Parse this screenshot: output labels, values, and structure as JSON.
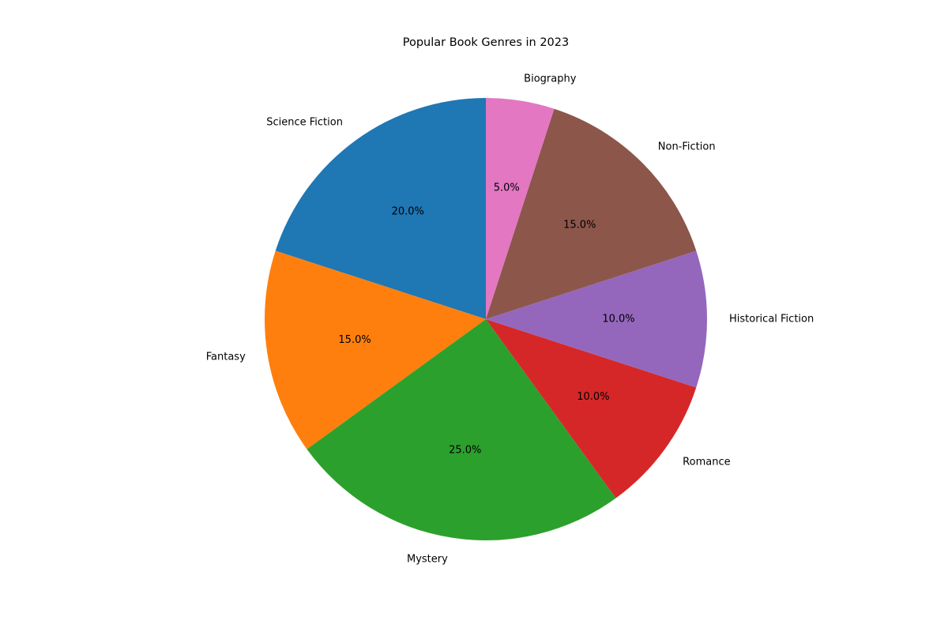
{
  "chart_data": {
    "type": "pie",
    "title": "Popular Book Genres in 2023",
    "categories": [
      "Science Fiction",
      "Fantasy",
      "Mystery",
      "Romance",
      "Historical Fiction",
      "Non-Fiction",
      "Biography"
    ],
    "values": [
      20,
      15,
      25,
      10,
      10,
      15,
      5
    ],
    "percent_labels": [
      "20.0%",
      "15.0%",
      "25.0%",
      "10.0%",
      "10.0%",
      "15.0%",
      "5.0%"
    ],
    "colors": [
      "#1f77b4",
      "#ff7f0e",
      "#2ca02c",
      "#d62728",
      "#9467bd",
      "#8c564b",
      "#e377c2"
    ],
    "start_angle_deg": 90,
    "direction": "counterclockwise",
    "legend": "none",
    "grid": false
  }
}
